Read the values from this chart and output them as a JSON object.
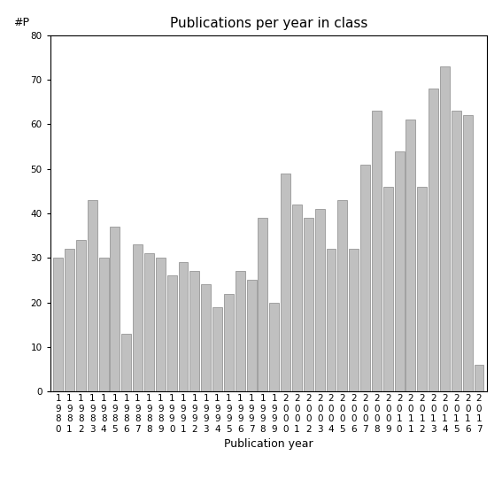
{
  "title": "Publications per year in class",
  "xlabel": "Publication year",
  "ylabel": "#P",
  "years": [
    "1980",
    "1981",
    "1982",
    "1983",
    "1984",
    "1985",
    "1986",
    "1987",
    "1988",
    "1989",
    "1990",
    "1991",
    "1992",
    "1993",
    "1994",
    "1995",
    "1996",
    "1997",
    "1998",
    "1999",
    "2000",
    "2001",
    "2002",
    "2003",
    "2004",
    "2005",
    "2006",
    "2007",
    "2008",
    "2009",
    "2010",
    "2011",
    "2012",
    "2013",
    "2014",
    "2015",
    "2016",
    "2017"
  ],
  "values": [
    30,
    32,
    34,
    43,
    30,
    37,
    13,
    33,
    31,
    30,
    26,
    29,
    27,
    24,
    19,
    22,
    27,
    25,
    39,
    20,
    49,
    42,
    39,
    41,
    32,
    43,
    32,
    51,
    63,
    46,
    54,
    61,
    46,
    68,
    73,
    63,
    62,
    6
  ],
  "bar_color": "#c0c0c0",
  "bar_edge_color": "#888888",
  "ylim": [
    0,
    80
  ],
  "yticks": [
    0,
    10,
    20,
    30,
    40,
    50,
    60,
    70,
    80
  ],
  "background_color": "#ffffff",
  "title_fontsize": 11,
  "label_fontsize": 9,
  "tick_fontsize": 7.5
}
